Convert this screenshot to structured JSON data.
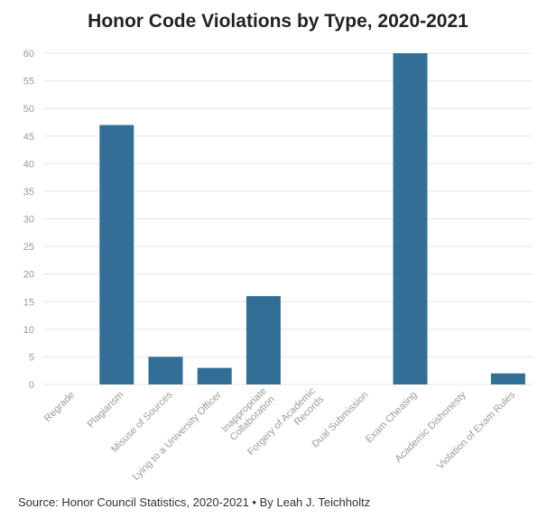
{
  "chart_data": {
    "type": "bar",
    "title": "Honor Code Violations by Type, 2020-2021",
    "categories": [
      "Regrade",
      "Plagiarism",
      "Misuse of Sources",
      "Lying to a University Officer",
      "Inappropriate Collaboration",
      "Forgery of Academic Records",
      "Dual Submission",
      "Exam Cheating",
      "Academic Dishonesty",
      "Violation of Exam Rules"
    ],
    "values": [
      0,
      47,
      5,
      3,
      16,
      0,
      0,
      60,
      0,
      2
    ],
    "ylim": [
      0,
      60
    ],
    "yticks": [
      0,
      5,
      10,
      15,
      20,
      25,
      30,
      35,
      40,
      45,
      50,
      55,
      60
    ],
    "grid": true,
    "bar_color": "#336e96",
    "xlabel": "",
    "ylabel": ""
  },
  "footer": {
    "source": "Source: Honor Council Statistics, 2020-2021 • By Leah J. Teichholtz"
  }
}
